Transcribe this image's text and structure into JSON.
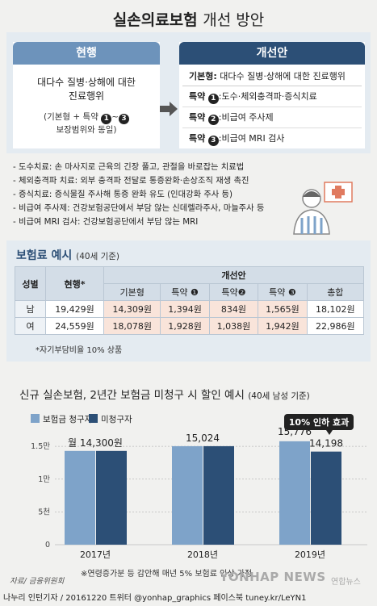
{
  "title": {
    "bold": "실손의료보험",
    "rest": "개선 방안"
  },
  "current": {
    "header": "현행",
    "text_line1": "대다수 질병·상해에 대한",
    "text_line2": "진료행위",
    "sub_line1a": "(기본형 + 특약 ",
    "sub_num1": "1",
    "sub_tilde": "~",
    "sub_num3": "3",
    "sub_line2": "보장범위와 동일)"
  },
  "improved": {
    "header": "개선안",
    "base_label": "기본형:",
    "base_text": "대다수 질병·상해에 대한 진료행위",
    "rows": [
      {
        "label": "특약",
        "num": "1",
        "text": ":도수·체외충격파·증식치료"
      },
      {
        "label": "특약",
        "num": "2",
        "text": ":비급여 주사제"
      },
      {
        "label": "특약",
        "num": "3",
        "text": ":비급여 MRI 검사"
      }
    ]
  },
  "notes": [
    "- 도수치료: 손 마사지로 근육의 긴장 풀고, 관절을 바로잡는 치료법",
    "- 체외충격파 치료: 외부 충격파 전달로 통증완화·손상조직 재생 촉진",
    "- 증식치료: 증식물질 주사해 통증 완화 유도 (인대강화 주사 등)",
    "- 비급여 주사제: 건강보험공단에서 부담 않는 신데렐라주사, 마늘주사 등",
    "- 비급여 MRI 검사: 건강보험공단에서 부담 않는 MRI"
  ],
  "example": {
    "title": "보험료 예시",
    "subtitle": "(40세 기준)",
    "headers": {
      "gender": "성별",
      "current": "현행*",
      "improved": "개선안"
    },
    "subheaders": [
      "기본형",
      "특약 ❶",
      "특약❷",
      "특약 ❸",
      "총합"
    ],
    "rows": [
      {
        "gender": "남",
        "current": "19,429원",
        "base": "14,309원",
        "r1": "1,394원",
        "r2": "834원",
        "r3": "1,565원",
        "total": "18,102원"
      },
      {
        "gender": "여",
        "current": "24,559원",
        "base": "18,078원",
        "r1": "1,928원",
        "r2": "1,038원",
        "r3": "1,942원",
        "total": "22,986원"
      }
    ],
    "footnote": "*자기부담비율 10% 상품"
  },
  "chart_title": {
    "main": "신규 실손보험, 2년간 보험금 미청구 시 할인 예시",
    "sub": "(40세 남성 기준)"
  },
  "chart_data": {
    "type": "bar",
    "categories": [
      "2017년",
      "2018년",
      "2019년"
    ],
    "series": [
      {
        "name": "보험금 청구자",
        "values": [
          14300,
          15024,
          15776
        ],
        "color": "#7ea3c9"
      },
      {
        "name": "미청구자",
        "values": [
          14300,
          15024,
          14198
        ],
        "color": "#2c4f76"
      }
    ],
    "ylim": [
      0,
      16000
    ],
    "yticks": [
      0,
      5000,
      10000,
      15000
    ],
    "ytick_labels": [
      "0",
      "5천",
      "1만",
      "1.5만"
    ],
    "data_labels": [
      {
        "text": "월 14,300원"
      },
      {
        "text": "15,024"
      },
      {
        "text": "15,776"
      },
      {
        "text": "14,198"
      }
    ],
    "callout": "10% 인하 효과",
    "note": "※연령증가분 등 감안해 매년 5% 보험료 인상 가정"
  },
  "source": "자료/ 금융위원회",
  "credit": "나누리 인턴기자 / 20161220  트위터 @yonhap_graphics  페이스북 tuney.kr/LeYN1",
  "watermark": "YONHAP NEWS",
  "watermark2": "연합뉴스"
}
